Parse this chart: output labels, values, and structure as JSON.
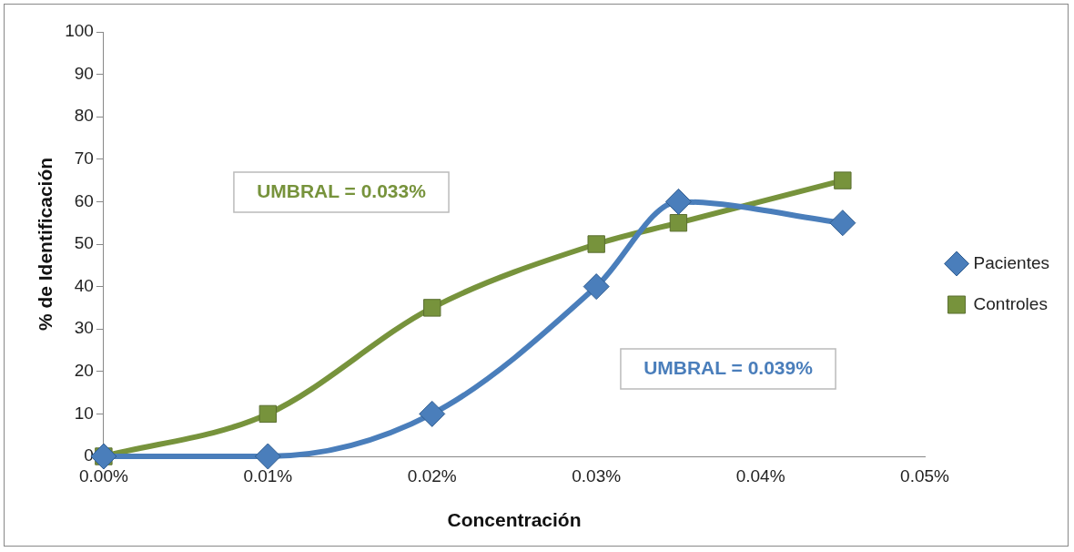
{
  "chart_data": {
    "type": "line",
    "xlabel": "Concentración",
    "ylabel": "% de Identificación",
    "x": [
      0,
      0.01,
      0.02,
      0.03,
      0.035,
      0.045
    ],
    "series": [
      {
        "name": "Pacientes",
        "color": "#4a7ebb",
        "marker": "diamond",
        "values": [
          0,
          0,
          10,
          40,
          60,
          55
        ]
      },
      {
        "name": "Controles",
        "color": "#77933c",
        "marker": "square",
        "values": [
          0,
          10,
          35,
          50,
          55,
          65
        ]
      }
    ],
    "xlim": [
      0,
      0.05
    ],
    "xticks": [
      {
        "value": 0,
        "label": "0.00%"
      },
      {
        "value": 0.01,
        "label": "0.01%"
      },
      {
        "value": 0.02,
        "label": "0.02%"
      },
      {
        "value": 0.03,
        "label": "0.03%"
      },
      {
        "value": 0.04,
        "label": "0.04%"
      },
      {
        "value": 0.05,
        "label": "0.05%"
      }
    ],
    "ylim": [
      0,
      100
    ],
    "yticks": [
      0,
      10,
      20,
      30,
      40,
      50,
      60,
      70,
      80,
      90,
      100
    ],
    "grid": false,
    "legend": "right",
    "annotations": [
      "UMBRAL = 0.033%",
      "UMBRAL = 0.039%"
    ]
  }
}
